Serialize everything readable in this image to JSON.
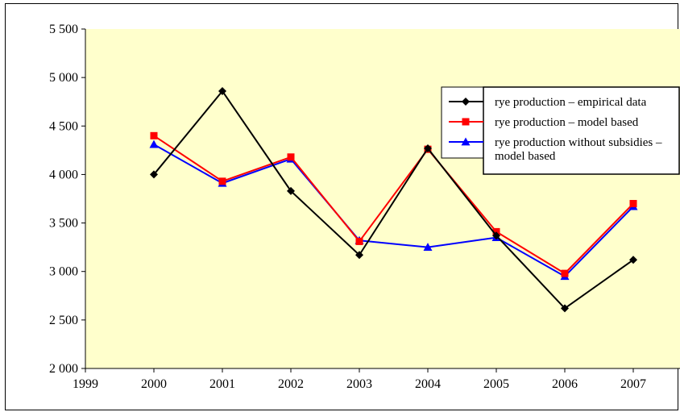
{
  "chart_data": {
    "type": "line",
    "title": "",
    "xlabel": "",
    "ylabel": "",
    "x": [
      2000,
      2001,
      2002,
      2003,
      2004,
      2005,
      2006,
      2007
    ],
    "x_ticks": [
      "1999",
      "2000",
      "2001",
      "2002",
      "2003",
      "2004",
      "2005",
      "2006",
      "2007"
    ],
    "xlim": [
      1999,
      2007
    ],
    "ylim": [
      2000,
      5500
    ],
    "y_ticks": [
      "2 000",
      "2 500",
      "3 000",
      "3 500",
      "4 000",
      "4 500",
      "5 000",
      "5 500"
    ],
    "grid": false,
    "plot_background": "#ffffcc",
    "legend_position": "top-right",
    "series": [
      {
        "name": "rye production – empirical data",
        "color": "#000000",
        "marker": "diamond",
        "values": [
          4000,
          4860,
          3830,
          3170,
          4270,
          3370,
          2620,
          3120
        ]
      },
      {
        "name": "rye production – model based",
        "color": "#ff0000",
        "marker": "square",
        "values": [
          4400,
          3930,
          4180,
          3310,
          4260,
          3410,
          2980,
          3700
        ]
      },
      {
        "name": "rye production without subsidies – model based",
        "name_lines": [
          "rye production without subsidies –",
          "model based"
        ],
        "color": "#0000ff",
        "marker": "triangle",
        "values": [
          4310,
          3910,
          4160,
          3320,
          3250,
          3350,
          2950,
          3670
        ]
      }
    ]
  }
}
